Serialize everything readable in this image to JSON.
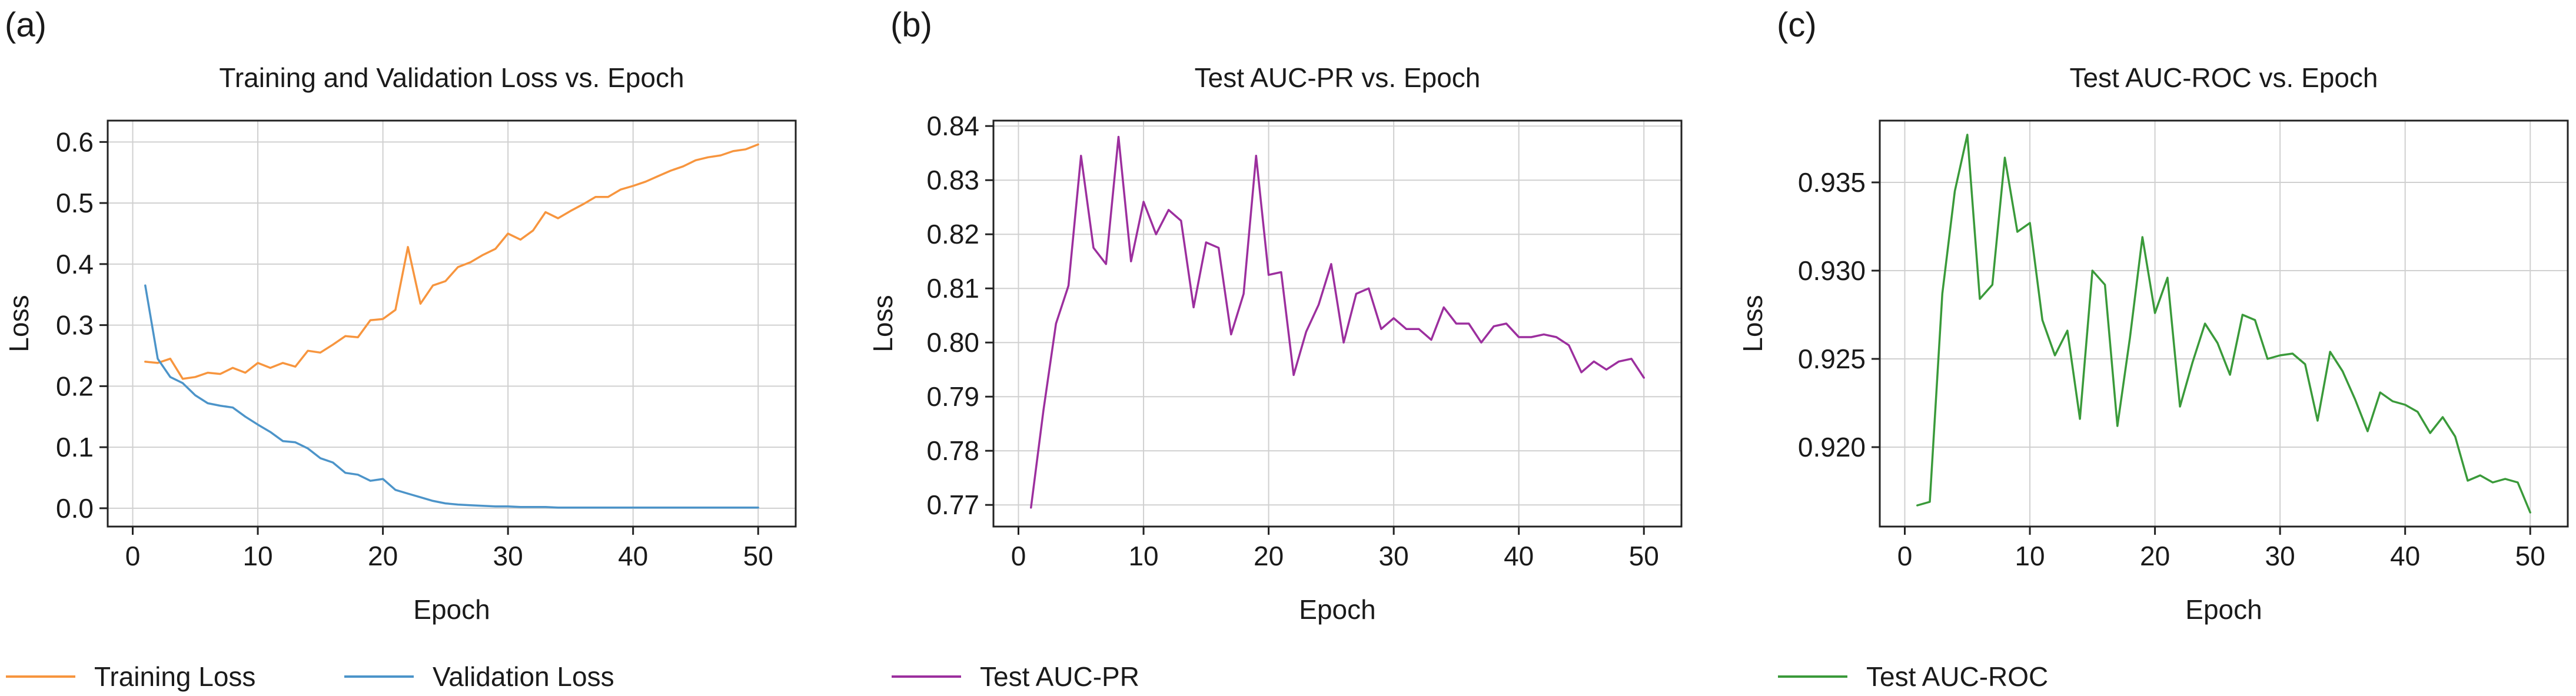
{
  "panels": [
    {
      "label": "(a)",
      "legend": [
        {
          "name": "Training Loss",
          "color": "#f7953e"
        },
        {
          "name": "Validation Loss",
          "color": "#4c94c9"
        }
      ]
    },
    {
      "label": "(b)",
      "legend": [
        {
          "name": "Test AUC-PR",
          "color": "#9c2f9e"
        }
      ]
    },
    {
      "label": "(c)",
      "legend": [
        {
          "name": "Test AUC-ROC",
          "color": "#3a9a3a"
        }
      ]
    }
  ],
  "chart_data": [
    {
      "type": "line",
      "title": "Training and Validation Loss vs. Epoch",
      "xlabel": "Epoch",
      "ylabel": "Loss",
      "xlim": [
        -2,
        53
      ],
      "ylim": [
        -0.03,
        0.635
      ],
      "xticks": [
        0,
        10,
        20,
        30,
        40,
        50
      ],
      "yticks": [
        0.0,
        0.1,
        0.2,
        0.3,
        0.4,
        0.5,
        0.6
      ],
      "ytick_labels": [
        "0.0",
        "0.1",
        "0.2",
        "0.3",
        "0.4",
        "0.5",
        "0.6"
      ],
      "grid": true,
      "legend_position": "bottom",
      "x": [
        1,
        2,
        3,
        4,
        5,
        6,
        7,
        8,
        9,
        10,
        11,
        12,
        13,
        14,
        15,
        16,
        17,
        18,
        19,
        20,
        21,
        22,
        23,
        24,
        25,
        26,
        27,
        28,
        29,
        30,
        31,
        32,
        33,
        34,
        35,
        36,
        37,
        38,
        39,
        40,
        41,
        42,
        43,
        44,
        45,
        46,
        47,
        48,
        49,
        50
      ],
      "series": [
        {
          "name": "Training Loss",
          "color": "#f7953e",
          "values": [
            0.24,
            0.238,
            0.245,
            0.212,
            0.215,
            0.222,
            0.22,
            0.23,
            0.222,
            0.238,
            0.23,
            0.238,
            0.232,
            0.258,
            0.255,
            0.268,
            0.282,
            0.28,
            0.308,
            0.31,
            0.325,
            0.428,
            0.335,
            0.365,
            0.372,
            0.395,
            0.403,
            0.415,
            0.425,
            0.45,
            0.44,
            0.455,
            0.485,
            0.475,
            0.487,
            0.498,
            0.51,
            0.51,
            0.522,
            0.528,
            0.535,
            0.544,
            0.553,
            0.56,
            0.57,
            0.575,
            0.578,
            0.585,
            0.588,
            0.596
          ]
        },
        {
          "name": "Validation Loss",
          "color": "#4c94c9",
          "values": [
            0.365,
            0.245,
            0.215,
            0.205,
            0.185,
            0.172,
            0.168,
            0.165,
            0.15,
            0.137,
            0.125,
            0.11,
            0.108,
            0.098,
            0.082,
            0.075,
            0.058,
            0.055,
            0.045,
            0.048,
            0.03,
            0.024,
            0.018,
            0.012,
            0.008,
            0.006,
            0.005,
            0.004,
            0.003,
            0.003,
            0.002,
            0.002,
            0.002,
            0.001,
            0.001,
            0.001,
            0.001,
            0.001,
            0.001,
            0.001,
            0.001,
            0.001,
            0.001,
            0.001,
            0.001,
            0.001,
            0.001,
            0.001,
            0.001,
            0.001
          ]
        }
      ]
    },
    {
      "type": "line",
      "title": "Test AUC-PR vs. Epoch",
      "xlabel": "Epoch",
      "ylabel": "Loss",
      "xlim": [
        -2,
        53
      ],
      "ylim": [
        0.766,
        0.841
      ],
      "xticks": [
        0,
        10,
        20,
        30,
        40,
        50
      ],
      "yticks": [
        0.77,
        0.78,
        0.79,
        0.8,
        0.81,
        0.82,
        0.83,
        0.84
      ],
      "ytick_labels": [
        "0.77",
        "0.78",
        "0.79",
        "0.80",
        "0.81",
        "0.82",
        "0.83",
        "0.84"
      ],
      "grid": true,
      "legend_position": "bottom",
      "x": [
        1,
        2,
        3,
        4,
        5,
        6,
        7,
        8,
        9,
        10,
        11,
        12,
        13,
        14,
        15,
        16,
        17,
        18,
        19,
        20,
        21,
        22,
        23,
        24,
        25,
        26,
        27,
        28,
        29,
        30,
        31,
        32,
        33,
        34,
        35,
        36,
        37,
        38,
        39,
        40,
        41,
        42,
        43,
        44,
        45,
        46,
        47,
        48,
        49,
        50
      ],
      "series": [
        {
          "name": "Test AUC-PR",
          "color": "#9c2f9e",
          "values": [
            0.7695,
            0.7875,
            0.8035,
            0.8105,
            0.8345,
            0.8175,
            0.8145,
            0.838,
            0.815,
            0.826,
            0.82,
            0.8245,
            0.8225,
            0.8065,
            0.8185,
            0.8175,
            0.8015,
            0.809,
            0.8345,
            0.8125,
            0.813,
            0.794,
            0.802,
            0.807,
            0.8145,
            0.8,
            0.809,
            0.81,
            0.8025,
            0.8045,
            0.8025,
            0.8025,
            0.8005,
            0.8065,
            0.8035,
            0.8035,
            0.8,
            0.803,
            0.8035,
            0.801,
            0.801,
            0.8015,
            0.801,
            0.7995,
            0.7945,
            0.7965,
            0.795,
            0.7965,
            0.797,
            0.7935
          ]
        }
      ]
    },
    {
      "type": "line",
      "title": "Test AUC-ROC vs. Epoch",
      "xlabel": "Epoch",
      "ylabel": "Loss",
      "xlim": [
        -2,
        53
      ],
      "ylim": [
        0.9155,
        0.9385
      ],
      "xticks": [
        0,
        10,
        20,
        30,
        40,
        50
      ],
      "yticks": [
        0.92,
        0.925,
        0.93,
        0.935
      ],
      "ytick_labels": [
        "0.920",
        "0.925",
        "0.930",
        "0.935"
      ],
      "grid": true,
      "legend_position": "bottom",
      "x": [
        1,
        2,
        3,
        4,
        5,
        6,
        7,
        8,
        9,
        10,
        11,
        12,
        13,
        14,
        15,
        16,
        17,
        18,
        19,
        20,
        21,
        22,
        23,
        24,
        25,
        26,
        27,
        28,
        29,
        30,
        31,
        32,
        33,
        34,
        35,
        36,
        37,
        38,
        39,
        40,
        41,
        42,
        43,
        44,
        45,
        46,
        47,
        48,
        49,
        50
      ],
      "series": [
        {
          "name": "Test AUC-ROC",
          "color": "#3a9a3a",
          "values": [
            0.9167,
            0.9169,
            0.9287,
            0.9345,
            0.9377,
            0.9284,
            0.9292,
            0.9364,
            0.9322,
            0.9327,
            0.9272,
            0.9252,
            0.9266,
            0.9216,
            0.93,
            0.9292,
            0.9212,
            0.9262,
            0.9319,
            0.9276,
            0.9296,
            0.9223,
            0.9248,
            0.927,
            0.9259,
            0.9241,
            0.9275,
            0.9272,
            0.925,
            0.9252,
            0.9253,
            0.9247,
            0.9215,
            0.9254,
            0.9243,
            0.9227,
            0.9209,
            0.9231,
            0.9226,
            0.9224,
            0.922,
            0.9208,
            0.9217,
            0.9206,
            0.9181,
            0.9184,
            0.918,
            0.9182,
            0.918,
            0.9163
          ]
        }
      ]
    }
  ]
}
